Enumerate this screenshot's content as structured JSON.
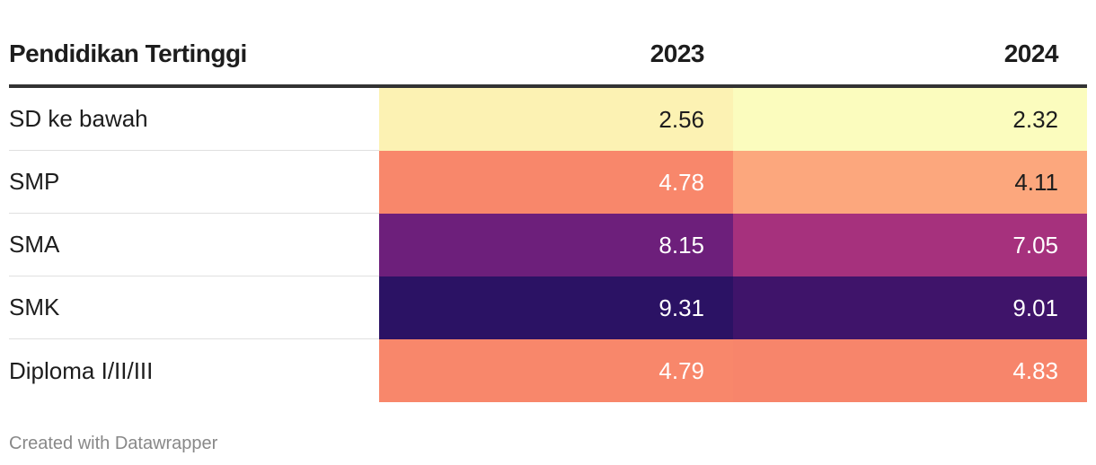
{
  "chart_data": {
    "type": "table",
    "title": "",
    "header": {
      "label": "Pendidikan Tertinggi",
      "columns": [
        "2023",
        "2024"
      ]
    },
    "rows": [
      {
        "label": "SD ke bawah",
        "values": [
          "2.56",
          "2.32"
        ],
        "colors": [
          "#fcf2b3",
          "#fbfcbe"
        ],
        "text_colors": [
          "#1d1d1d",
          "#1d1d1d"
        ]
      },
      {
        "label": "SMP",
        "values": [
          "4.78",
          "4.11"
        ],
        "colors": [
          "#f8876b",
          "#fca77d"
        ],
        "text_colors": [
          "#ffffff",
          "#1d1d1d"
        ]
      },
      {
        "label": "SMA",
        "values": [
          "8.15",
          "7.05"
        ],
        "colors": [
          "#6d1f7b",
          "#a6317d"
        ],
        "text_colors": [
          "#ffffff",
          "#ffffff"
        ]
      },
      {
        "label": "SMK",
        "values": [
          "9.31",
          "9.01"
        ],
        "colors": [
          "#2b1264",
          "#3f146a"
        ],
        "text_colors": [
          "#ffffff",
          "#ffffff"
        ]
      },
      {
        "label": "Diploma I/II/III",
        "values": [
          "4.79",
          "4.83"
        ],
        "colors": [
          "#f8876b",
          "#f7856b"
        ],
        "text_colors": [
          "#ffffff",
          "#ffffff"
        ]
      }
    ],
    "color_scale": "magma (reversed): low = light yellow, high = dark purple"
  },
  "footer": {
    "credit": "Created with Datawrapper"
  }
}
